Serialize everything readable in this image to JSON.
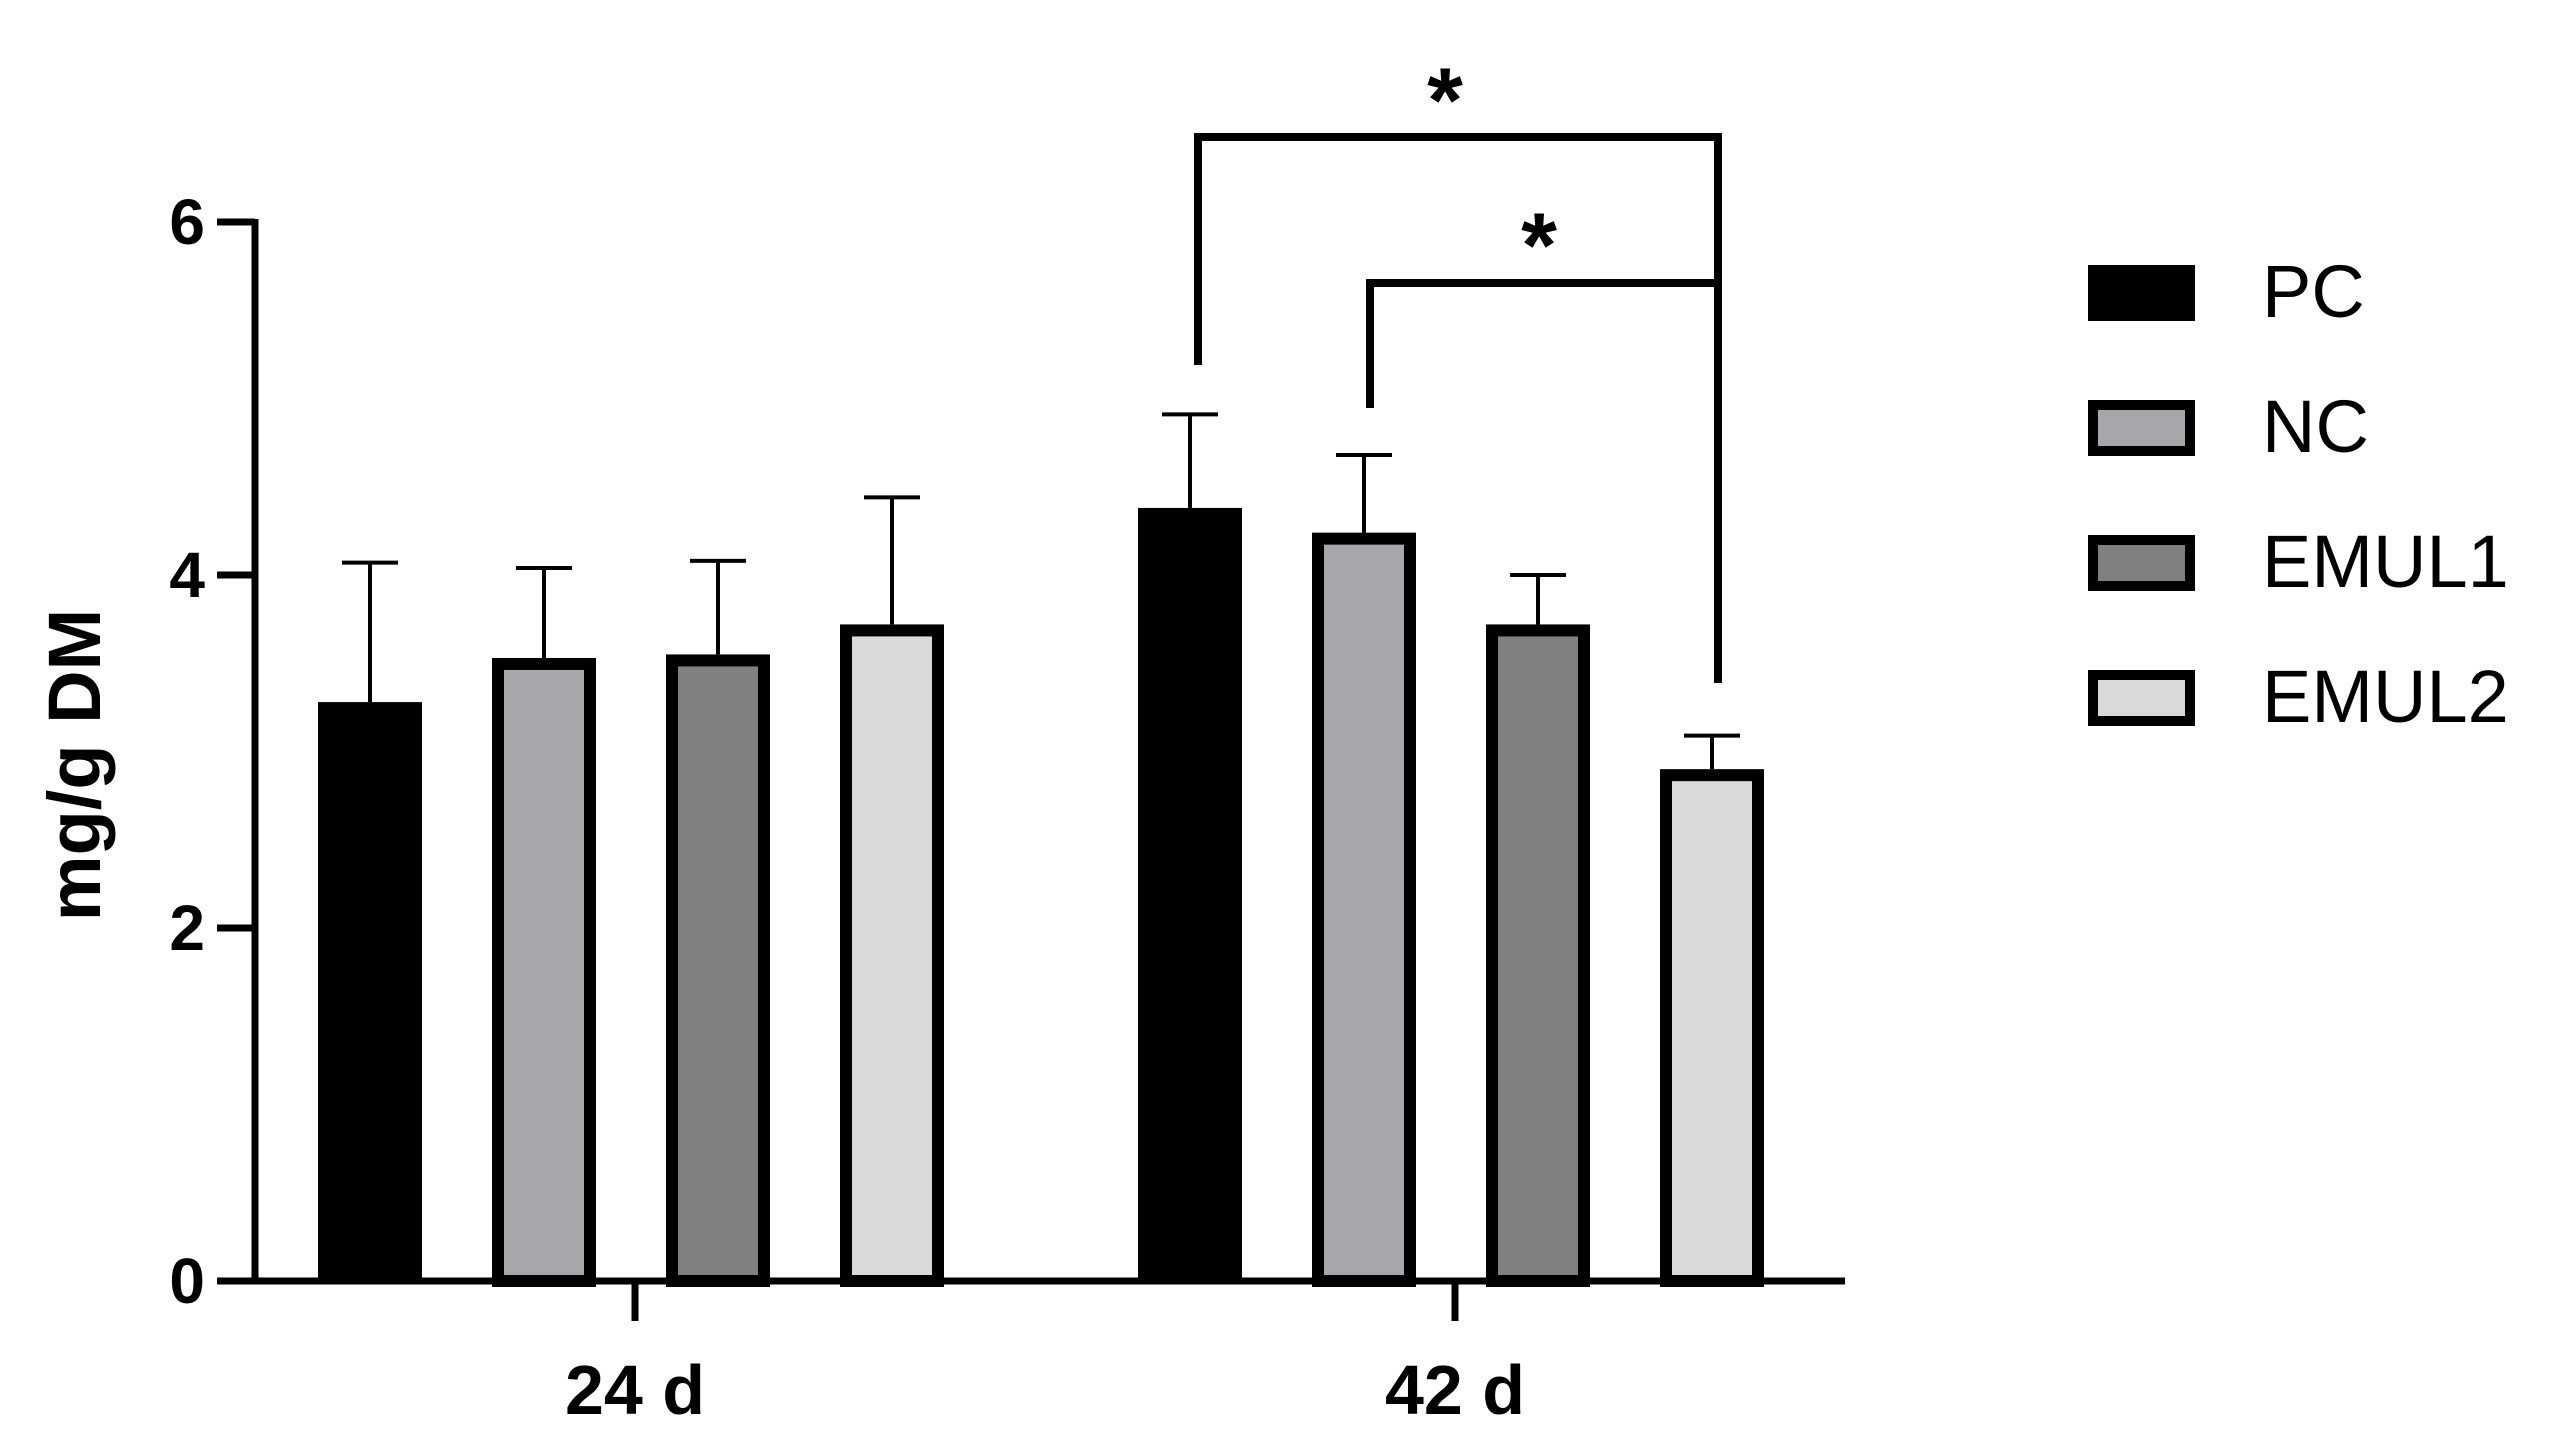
{
  "chart_data": {
    "type": "bar",
    "title": "",
    "xlabel": "",
    "ylabel": "mg/g DM",
    "ylim": [
      0,
      6
    ],
    "yticks": [
      0,
      2,
      4,
      6
    ],
    "yticklabels": [
      "0",
      "2",
      "4",
      "6"
    ],
    "categories": [
      "24 d",
      "42 d"
    ],
    "grid": false,
    "legend_position": "right",
    "series": [
      {
        "name": "PC",
        "values": [
          3.28,
          4.38
        ],
        "errors": [
          0.79,
          0.53
        ],
        "fill": "#000000",
        "stroke": "#000000"
      },
      {
        "name": "NC",
        "values": [
          3.53,
          4.24
        ],
        "errors": [
          0.51,
          0.44
        ],
        "fill": "#a7a7ab",
        "stroke": "#000000"
      },
      {
        "name": "EMUL1",
        "values": [
          3.55,
          3.72
        ],
        "errors": [
          0.53,
          0.28
        ],
        "fill": "#808080",
        "stroke": "#000000"
      },
      {
        "name": "EMUL2",
        "values": [
          3.72,
          2.9
        ],
        "errors": [
          0.72,
          0.19
        ],
        "fill": "#d9d9d9",
        "stroke": "#000000"
      }
    ],
    "annotations": [
      {
        "text": "*",
        "category": "42 d",
        "from_series": "PC",
        "to_series": "EMUL2"
      },
      {
        "text": "*",
        "category": "42 d",
        "from_series": "NC",
        "to_series": "EMUL2"
      }
    ]
  }
}
